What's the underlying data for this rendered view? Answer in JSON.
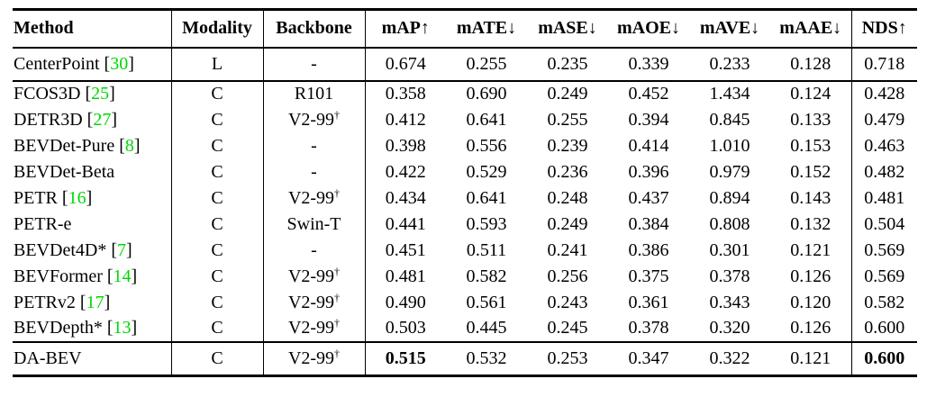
{
  "table": {
    "colors": {
      "citation_green": "#00d800",
      "text": "#000000",
      "background": "#ffffff"
    },
    "columns": [
      "Method",
      "Modality",
      "Backbone",
      "mAP↑",
      "mATE↓",
      "mASE↓",
      "mAOE↓",
      "mAVE↓",
      "mAAE↓",
      "NDS↑"
    ],
    "groups": [
      {
        "name": "lidar-baseline",
        "rows": [
          {
            "method_prefix": "CenterPoint [",
            "cite": "30",
            "method_suffix": "]",
            "modality": "L",
            "backbone": "-",
            "backbone_sup": "",
            "map": "0.674",
            "mate": "0.255",
            "mase": "0.235",
            "maoe": "0.339",
            "mave": "0.233",
            "maae": "0.128",
            "nds": "0.718"
          }
        ]
      },
      {
        "name": "camera-methods",
        "rows": [
          {
            "method_prefix": "FCOS3D [",
            "cite": "25",
            "method_suffix": "]",
            "modality": "C",
            "backbone": "R101",
            "backbone_sup": "",
            "map": "0.358",
            "mate": "0.690",
            "mase": "0.249",
            "maoe": "0.452",
            "mave": "1.434",
            "maae": "0.124",
            "nds": "0.428"
          },
          {
            "method_prefix": "DETR3D [",
            "cite": "27",
            "method_suffix": "]",
            "modality": "C",
            "backbone": "V2-99",
            "backbone_sup": "†",
            "map": "0.412",
            "mate": "0.641",
            "mase": "0.255",
            "maoe": "0.394",
            "mave": "0.845",
            "maae": "0.133",
            "nds": "0.479"
          },
          {
            "method_prefix": "BEVDet-Pure [",
            "cite": "8",
            "method_suffix": "]",
            "modality": "C",
            "backbone": "-",
            "backbone_sup": "",
            "map": "0.398",
            "mate": "0.556",
            "mase": "0.239",
            "maoe": "0.414",
            "mave": "1.010",
            "maae": "0.153",
            "nds": "0.463"
          },
          {
            "method_prefix": "BEVDet-Beta",
            "cite": "",
            "method_suffix": "",
            "modality": "C",
            "backbone": "-",
            "backbone_sup": "",
            "map": "0.422",
            "mate": "0.529",
            "mase": "0.236",
            "maoe": "0.396",
            "mave": "0.979",
            "maae": "0.152",
            "nds": "0.482"
          },
          {
            "method_prefix": "PETR [",
            "cite": "16",
            "method_suffix": "]",
            "modality": "C",
            "backbone": "V2-99",
            "backbone_sup": "†",
            "map": "0.434",
            "mate": "0.641",
            "mase": "0.248",
            "maoe": "0.437",
            "mave": "0.894",
            "maae": "0.143",
            "nds": "0.481"
          },
          {
            "method_prefix": "PETR-e",
            "cite": "",
            "method_suffix": "",
            "modality": "C",
            "backbone": "Swin-T",
            "backbone_sup": "",
            "map": "0.441",
            "mate": "0.593",
            "mase": "0.249",
            "maoe": "0.384",
            "mave": "0.808",
            "maae": "0.132",
            "nds": "0.504"
          },
          {
            "method_prefix": "BEVDet4D* [",
            "cite": "7",
            "method_suffix": "]",
            "modality": "C",
            "backbone": "-",
            "backbone_sup": "",
            "map": "0.451",
            "mate": "0.511",
            "mase": "0.241",
            "maoe": "0.386",
            "mave": "0.301",
            "maae": "0.121",
            "nds": "0.569"
          },
          {
            "method_prefix": "BEVFormer [",
            "cite": "14",
            "method_suffix": "]",
            "modality": "C",
            "backbone": "V2-99",
            "backbone_sup": "†",
            "map": "0.481",
            "mate": "0.582",
            "mase": "0.256",
            "maoe": "0.375",
            "mave": "0.378",
            "maae": "0.126",
            "nds": "0.569"
          },
          {
            "method_prefix": "PETRv2 [",
            "cite": "17",
            "method_suffix": "]",
            "modality": "C",
            "backbone": "V2-99",
            "backbone_sup": "†",
            "map": "0.490",
            "mate": "0.561",
            "mase": "0.243",
            "maoe": "0.361",
            "mave": "0.343",
            "maae": "0.120",
            "nds": "0.582"
          },
          {
            "method_prefix": "BEVDepth* [",
            "cite": "13",
            "method_suffix": "]",
            "modality": "C",
            "backbone": "V2-99",
            "backbone_sup": "†",
            "map": "0.503",
            "mate": "0.445",
            "mase": "0.245",
            "maoe": "0.378",
            "mave": "0.320",
            "maae": "0.126",
            "nds": "0.600"
          }
        ]
      },
      {
        "name": "ours",
        "rows": [
          {
            "method_prefix": "DA-BEV",
            "cite": "",
            "method_suffix": "",
            "modality": "C",
            "backbone": "V2-99",
            "backbone_sup": "†",
            "map": "0.515",
            "mate": "0.532",
            "mase": "0.253",
            "maoe": "0.347",
            "mave": "0.322",
            "maae": "0.121",
            "nds": "0.600"
          }
        ]
      }
    ]
  }
}
